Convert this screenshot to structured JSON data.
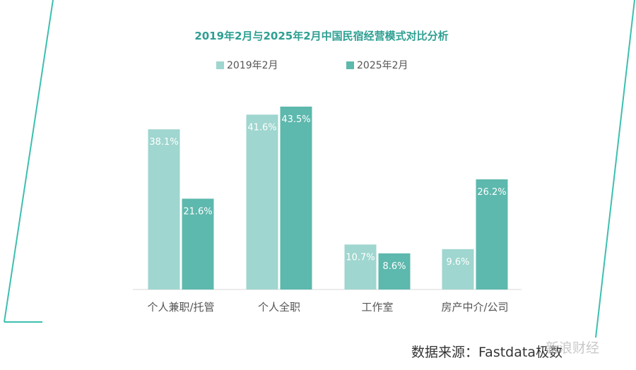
{
  "chart_data": {
    "type": "bar",
    "title": "2019年2月与2025年2月中国民宿经营模式对比分析",
    "categories": [
      "个人兼职/托管",
      "个人全职",
      "工作室",
      "房产中介/公司"
    ],
    "series": [
      {
        "name": "2019年2月",
        "values": [
          38.1,
          41.6,
          10.7,
          9.6
        ],
        "labels": [
          "38.1%",
          "41.6%",
          "10.7%",
          "9.6%"
        ],
        "color": "#9fd6cf"
      },
      {
        "name": "2025年2月",
        "values": [
          21.6,
          43.5,
          8.6,
          26.2
        ],
        "labels": [
          "21.6%",
          "43.5%",
          "8.6%",
          "26.2%"
        ],
        "color": "#5db8ad"
      }
    ],
    "ylim": [
      0,
      45
    ],
    "grid": false,
    "legend": "top-center",
    "title_color": "#2e9f92",
    "frame_color": "#3dbfae"
  },
  "footer": {
    "source": "数据来源：Fastdata极数",
    "watermark": "新浪财经"
  }
}
